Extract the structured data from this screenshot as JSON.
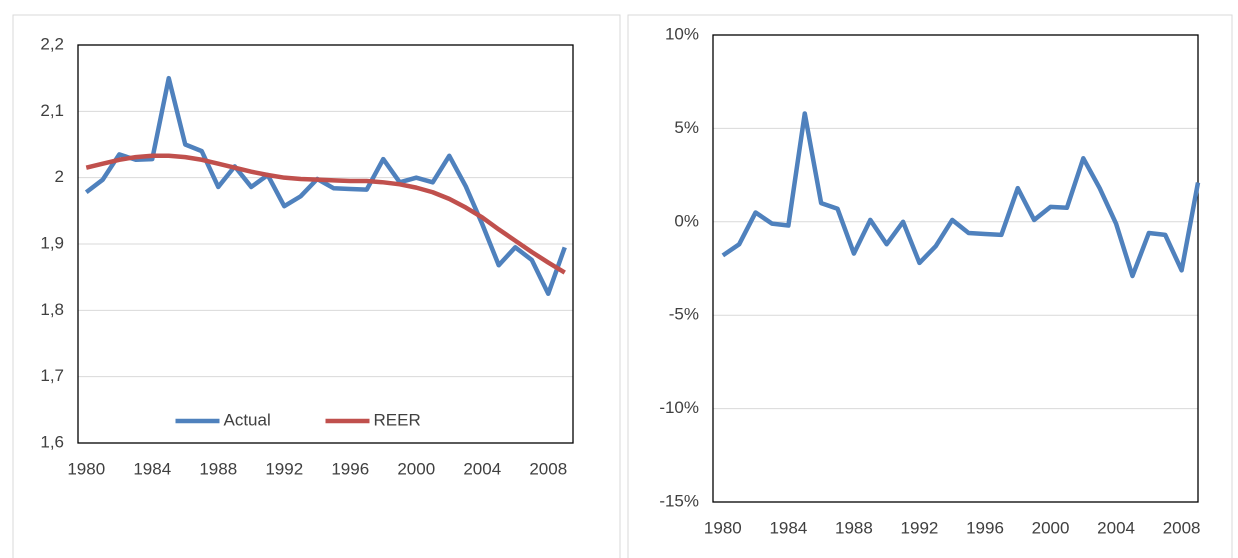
{
  "chart_data": [
    {
      "type": "line",
      "x": [
        1980,
        1981,
        1982,
        1983,
        1984,
        1985,
        1986,
        1987,
        1988,
        1989,
        1990,
        1991,
        1992,
        1993,
        1994,
        1995,
        1996,
        1997,
        1998,
        1999,
        2000,
        2001,
        2002,
        2003,
        2004,
        2005,
        2006,
        2007,
        2008,
        2009
      ],
      "series": [
        {
          "name": "Actual",
          "color": "#4f81bd",
          "values": [
            1.978,
            1.997,
            2.035,
            2.027,
            2.028,
            2.15,
            2.05,
            2.04,
            1.986,
            2.017,
            1.986,
            2.004,
            1.957,
            1.972,
            1.998,
            1.984,
            1.983,
            1.982,
            2.028,
            1.993,
            2.0,
            1.993,
            2.033,
            1.987,
            1.93,
            1.868,
            1.895,
            1.876,
            1.825,
            1.895
          ]
        },
        {
          "name": "REER",
          "color": "#c0504d",
          "values": [
            2.015,
            2.021,
            2.027,
            2.031,
            2.033,
            2.033,
            2.031,
            2.027,
            2.021,
            2.015,
            2.009,
            2.004,
            2.0,
            1.998,
            1.997,
            1.996,
            1.995,
            1.995,
            1.993,
            1.99,
            1.985,
            1.978,
            1.968,
            1.955,
            1.94,
            1.922,
            1.905,
            1.888,
            1.872,
            1.857
          ]
        }
      ],
      "xlim": [
        1979.5,
        2009.5
      ],
      "xticks": [
        1980,
        1984,
        1988,
        1992,
        1996,
        2000,
        2004,
        2008
      ],
      "ylim": [
        1.6,
        2.2
      ],
      "yticks": [
        {
          "value": 1.6,
          "label": "1,6"
        },
        {
          "value": 1.7,
          "label": "1,7"
        },
        {
          "value": 1.8,
          "label": "1,8"
        },
        {
          "value": 1.9,
          "label": "1,9"
        },
        2,
        {
          "value": 2.1,
          "label": "2,1"
        },
        {
          "value": 2.2,
          "label": "2,2"
        }
      ],
      "grid": true,
      "legend": "bottom"
    },
    {
      "type": "line",
      "x": [
        1980,
        1981,
        1982,
        1983,
        1984,
        1985,
        1986,
        1987,
        1988,
        1989,
        1990,
        1991,
        1992,
        1993,
        1994,
        1995,
        1996,
        1997,
        1998,
        1999,
        2000,
        2001,
        2002,
        2003,
        2004,
        2005,
        2006,
        2007,
        2008,
        2009
      ],
      "series": [
        {
          "color": "#4f81bd",
          "values": [
            -1.8,
            -1.2,
            0.5,
            -0.1,
            -0.2,
            5.8,
            1.0,
            0.7,
            -1.7,
            0.1,
            -1.2,
            0.0,
            -2.2,
            -1.3,
            0.1,
            -0.6,
            -0.65,
            -0.7,
            1.8,
            0.1,
            0.8,
            0.75,
            3.4,
            1.8,
            -0.1,
            -2.9,
            -0.6,
            -0.7,
            -2.6,
            2.1
          ]
        }
      ],
      "xlim": [
        1979.4,
        2009
      ],
      "xticks": [
        1980,
        1984,
        1988,
        1992,
        1996,
        2000,
        2004,
        2008
      ],
      "ylim": [
        -15,
        10
      ],
      "yticks": [
        {
          "value": -15,
          "label": "-15%"
        },
        {
          "value": -10,
          "label": "-10%"
        },
        {
          "value": -5,
          "label": "-5%"
        },
        {
          "value": 0,
          "label": "0%"
        },
        {
          "value": 5,
          "label": "5%"
        },
        {
          "value": 10,
          "label": "10%"
        }
      ],
      "grid": true
    }
  ]
}
